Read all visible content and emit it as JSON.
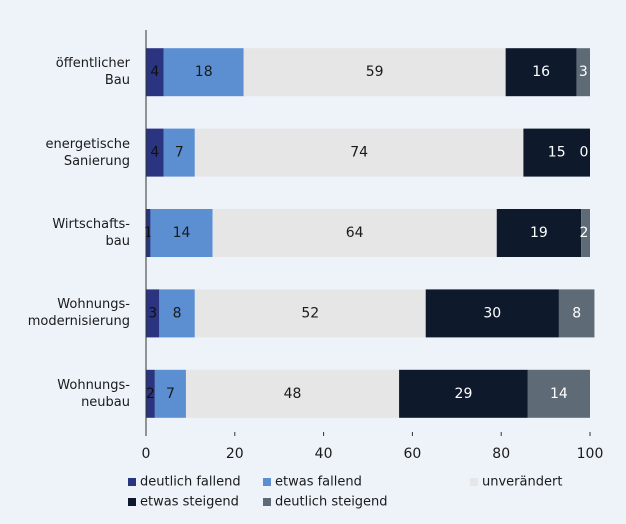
{
  "chart_data": {
    "type": "stacked-barh",
    "categories": [
      "öffentlicher\nBau",
      "energetische\nSanierung",
      "Wirtschafts-\nbau",
      "Wohnungs-\nmodernisierung",
      "Wohnungs-\nneubau"
    ],
    "series": [
      {
        "name": "deutlich fallend",
        "color": "#2b3480",
        "values": [
          4,
          4,
          1,
          3,
          2
        ]
      },
      {
        "name": "etwas fallend",
        "color": "#5b8fd2",
        "values": [
          18,
          7,
          14,
          8,
          7
        ]
      },
      {
        "name": "unverändert",
        "color": "#e6e6e6",
        "values": [
          59,
          74,
          64,
          52,
          48
        ]
      },
      {
        "name": "etwas steigend",
        "color": "#0e1a2c",
        "values": [
          16,
          15,
          19,
          30,
          29
        ]
      },
      {
        "name": "deutlich steigend",
        "color": "#5e6a76",
        "values": [
          3,
          0,
          2,
          8,
          14
        ]
      }
    ],
    "xlim": [
      0,
      100
    ],
    "xticks": [
      0,
      20,
      40,
      60,
      80,
      100
    ]
  }
}
